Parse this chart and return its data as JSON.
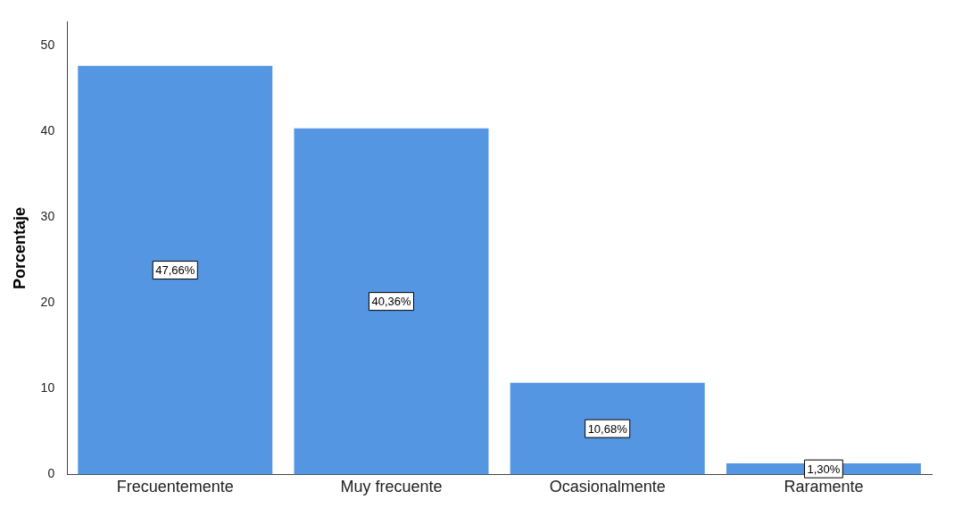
{
  "chart_data": {
    "type": "bar",
    "ylabel": "Porcentaje",
    "categories": [
      "Frecuentemente",
      "Muy frecuente",
      "Ocasionalmente",
      "Raramente"
    ],
    "values": [
      47.66,
      40.36,
      10.68,
      1.3
    ],
    "value_labels": [
      "47,66%",
      "40,36%",
      "10,68%",
      "1,30%"
    ],
    "color": "#5596e3",
    "ylim": [
      0,
      52.8
    ],
    "yticks": [
      0,
      10,
      20,
      30,
      40,
      50
    ],
    "grid": false,
    "legend": false
  }
}
